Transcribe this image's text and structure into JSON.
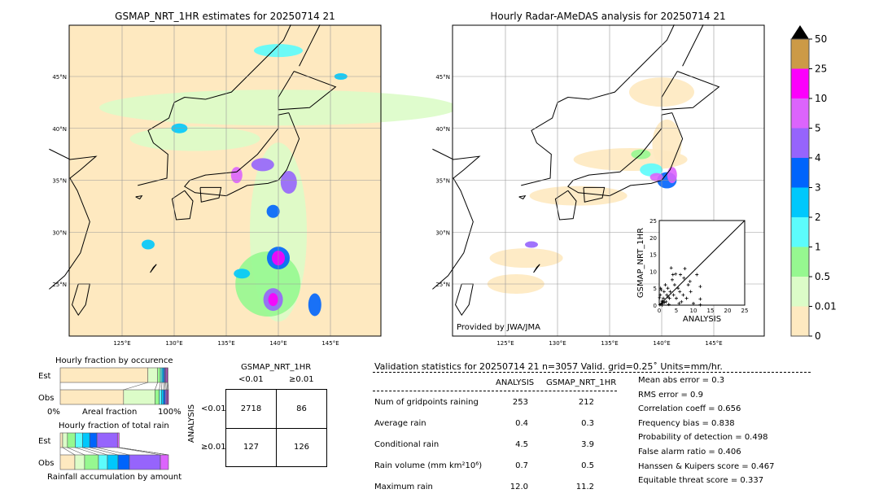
{
  "colors": {
    "bins": [
      "#fee9c0",
      "#dcfcc8",
      "#96f890",
      "#5cfcfc",
      "#00c8fc",
      "#0064fc",
      "#9664fc",
      "#dc64fc",
      "#fc00fc",
      "#cc9a46"
    ],
    "land_outline": "#000000",
    "grid": "#aaaaaa"
  },
  "map_left": {
    "title": "GSMAP_NRT_1HR estimates for 20250714 21",
    "type": "heatmap"
  },
  "map_right": {
    "title": "Hourly Radar-AMeDAS analysis for 20250714 21",
    "credit": "Provided by JWA/JMA",
    "type": "heatmap"
  },
  "lon_ticks": [
    "125°E",
    "130°E",
    "135°E",
    "140°E",
    "145°E"
  ],
  "lat_ticks": [
    "45°N",
    "40°N",
    "35°N",
    "30°N",
    "25°N"
  ],
  "colorbar": {
    "ticks": [
      "0",
      "0.01",
      "0.5",
      "1",
      "2",
      "3",
      "4",
      "5",
      "10",
      "25",
      "50"
    ],
    "extend": "max"
  },
  "chart_data": [
    {
      "type": "scatter",
      "xlabel": "ANALYSIS",
      "ylabel": "GSMAP_NRT_1HR",
      "xlim": [
        0,
        25
      ],
      "ylim": [
        0,
        25
      ],
      "ticks": [
        "0",
        "5",
        "10",
        "15",
        "20",
        "25"
      ],
      "marker": "+",
      "diagonal": true,
      "points": [
        [
          0.2,
          0.1
        ],
        [
          0.5,
          0.3
        ],
        [
          0.8,
          1.2
        ],
        [
          1,
          0.5
        ],
        [
          1.2,
          2
        ],
        [
          1.5,
          0.8
        ],
        [
          0.3,
          3
        ],
        [
          0.6,
          4.5
        ],
        [
          2,
          1
        ],
        [
          2.2,
          3
        ],
        [
          2.5,
          5
        ],
        [
          3,
          2
        ],
        [
          3.2,
          4
        ],
        [
          3.5,
          11
        ],
        [
          4,
          9
        ],
        [
          4.2,
          3
        ],
        [
          4.5,
          6
        ],
        [
          4.8,
          9.2
        ],
        [
          5,
          2
        ],
        [
          5.5,
          5
        ],
        [
          6,
          4
        ],
        [
          6.2,
          9
        ],
        [
          6.5,
          1
        ],
        [
          7,
          3
        ],
        [
          7.2,
          8
        ],
        [
          7.5,
          10.8
        ],
        [
          8,
          2
        ],
        [
          8.5,
          6
        ],
        [
          9,
          7
        ],
        [
          9.2,
          4
        ],
        [
          10,
          0.5
        ],
        [
          11,
          9
        ],
        [
          12,
          5.5
        ],
        [
          12,
          1.8
        ],
        [
          12,
          0.1
        ],
        [
          1.8,
          6
        ],
        [
          0.4,
          5
        ],
        [
          2.8,
          0.2
        ],
        [
          3.8,
          7.5
        ],
        [
          5.8,
          0.5
        ],
        [
          1,
          1
        ],
        [
          0.1,
          2.2
        ],
        [
          1.4,
          4
        ],
        [
          2.6,
          2.4
        ],
        [
          0.9,
          0
        ]
      ]
    },
    {
      "type": "bar",
      "title": "Hourly fraction by occurence",
      "xlabel": "Areal fraction",
      "xticks": [
        "0%",
        "100%"
      ],
      "categories": [
        "Est",
        "Obs"
      ],
      "stacked": true,
      "series_pct": {
        "Est": [
          81,
          9,
          2.5,
          1.5,
          1.5,
          1,
          1,
          1,
          0.8,
          0.2
        ],
        "Obs": [
          58.5,
          29,
          4,
          2,
          2,
          1.5,
          1,
          1,
          0.8,
          0.2
        ]
      }
    },
    {
      "type": "bar",
      "title": "Hourly fraction of total rain",
      "xlabel": "Rainfall accumulation by amount",
      "categories": [
        "Est",
        "Obs"
      ],
      "stacked": true,
      "series_pct": {
        "Est": [
          3,
          6,
          9.8,
          9,
          9,
          9,
          25.6,
          2.2,
          0,
          0
        ],
        "Obs": [
          13.5,
          9,
          12.8,
          8.3,
          9.8,
          10.5,
          28.6,
          7.5,
          0,
          0
        ]
      },
      "total_ratio_est_to_obs": 0.74
    },
    {
      "type": "table",
      "title": "GSMAP_NRT_1HR",
      "row_label": "ANALYSIS",
      "col_headers": [
        "<0.01",
        "≥0.01"
      ],
      "row_headers": [
        "<0.01",
        "≥0.01"
      ],
      "cells": [
        [
          "2718",
          "86"
        ],
        [
          "127",
          "126"
        ]
      ]
    }
  ],
  "stats": {
    "header": "Validation statistics for 20250714 21  n=3057 Valid. grid=0.25˚ Units=mm/hr.",
    "cols": [
      "ANALYSIS",
      "GSMAP_NRT_1HR"
    ],
    "rows": [
      {
        "label": "Num of gridpoints raining",
        "a": "253",
        "g": "212"
      },
      {
        "label": "Average rain",
        "a": "0.4",
        "g": "0.3"
      },
      {
        "label": "Conditional rain",
        "a": "4.5",
        "g": "3.9"
      },
      {
        "label": "Rain volume (mm km²10⁶)",
        "a": "0.7",
        "g": "0.5"
      },
      {
        "label": "Maximum rain",
        "a": "12.0",
        "g": "11.2"
      }
    ],
    "scores": [
      "Mean abs error =    0.3",
      "RMS error =    0.9",
      "Correlation coeff =  0.656",
      "Frequency bias =  0.838",
      "Probability of detection =  0.498",
      "False alarm ratio =  0.406",
      "Hanssen & Kuipers score =  0.467",
      "Equitable threat score =  0.337"
    ]
  }
}
